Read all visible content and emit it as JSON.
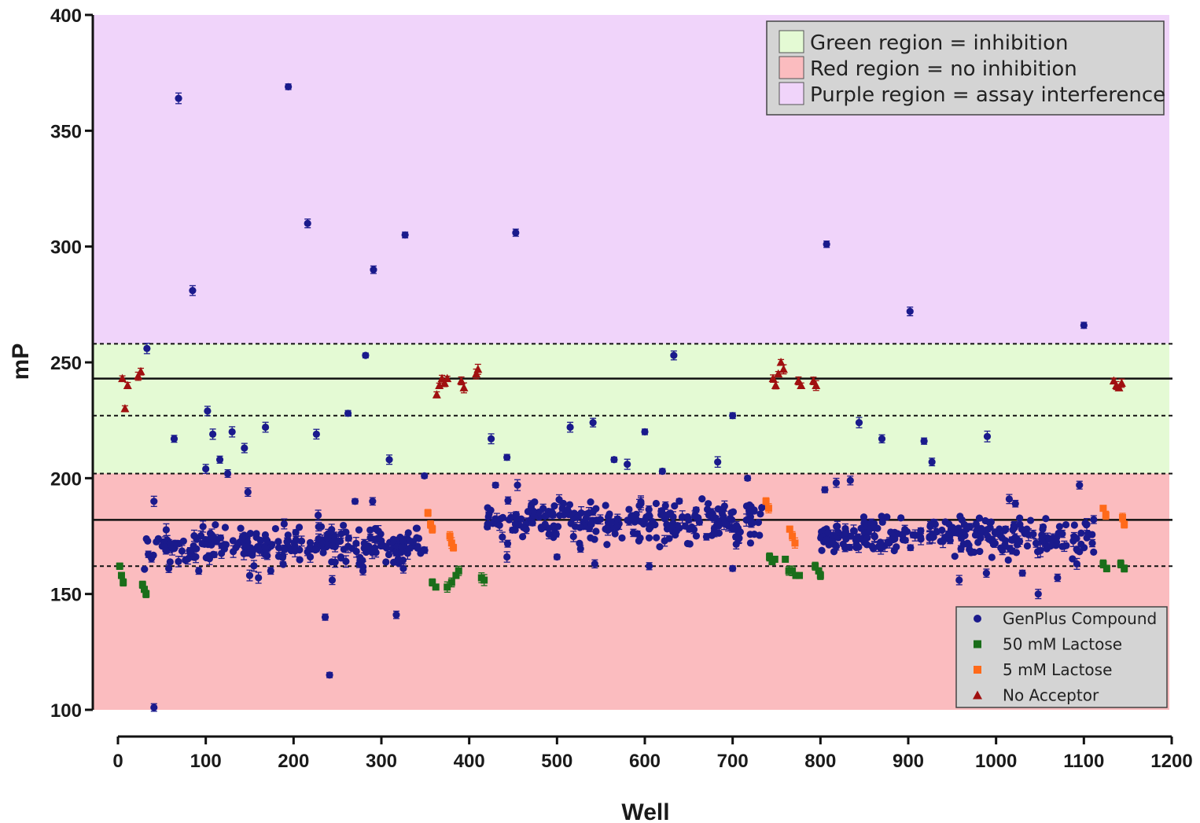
{
  "chart_data": {
    "type": "scatter",
    "title": "",
    "xlabel": "Well",
    "ylabel": "mP",
    "xlim": [
      0,
      1200
    ],
    "ylim": [
      100,
      400
    ],
    "x_ticks": [
      "0",
      "100",
      "200",
      "300",
      "400",
      "500",
      "600",
      "700",
      "800",
      "900",
      "1000",
      "1100",
      "1200"
    ],
    "y_ticks": [
      "100",
      "150",
      "200",
      "250",
      "300",
      "350",
      "400"
    ],
    "regions": [
      {
        "name": "purple",
        "from": 258,
        "to": 400,
        "color": "#f0d4fa"
      },
      {
        "name": "green",
        "from": 202,
        "to": 258,
        "color": "#e4fad4"
      },
      {
        "name": "red",
        "from": 100,
        "to": 202,
        "color": "#fbbcbf"
      }
    ],
    "reference_lines": [
      {
        "y": 243,
        "style": "solid"
      },
      {
        "y": 258,
        "style": "dashed"
      },
      {
        "y": 227,
        "style": "dashed"
      },
      {
        "y": 182,
        "style": "solid"
      },
      {
        "y": 202,
        "style": "dashed"
      },
      {
        "y": 162,
        "style": "dashed"
      }
    ],
    "region_legend": [
      {
        "label": "Green region = inhibition",
        "color": "#e4fad4"
      },
      {
        "label": "Red region = no inhibition",
        "color": "#fbbcbf"
      },
      {
        "label": "Purple region = assay interference",
        "color": "#f0d4fa"
      }
    ],
    "series_legend": [
      {
        "label": "GenPlus Compound",
        "marker": "circle",
        "color": "#1a1a8c"
      },
      {
        "label": "50 mM Lactose",
        "marker": "square",
        "color": "#1a6e1a"
      },
      {
        "label": "5 mM Lactose",
        "marker": "square",
        "color": "#ff6a1a"
      },
      {
        "label": "No Acceptor",
        "marker": "triangle",
        "color": "#a01010"
      }
    ],
    "series": [
      {
        "name": "GenPlus Compound",
        "marker": "circle",
        "color": "#1a1a8c",
        "bands": [
          {
            "x": [
              30,
              350
            ],
            "center": 171,
            "spread": 7,
            "n": 260
          },
          {
            "x": [
              420,
              735
            ],
            "center": 181,
            "spread": 8,
            "n": 260
          },
          {
            "x": [
              800,
              1112
            ],
            "center": 175,
            "spread": 7,
            "n": 260
          }
        ],
        "points": [
          [
            69,
            364
          ],
          [
            85,
            281
          ],
          [
            194,
            369
          ],
          [
            216,
            310
          ],
          [
            291,
            290
          ],
          [
            327,
            305
          ],
          [
            453,
            306
          ],
          [
            807,
            301
          ],
          [
            902,
            272
          ],
          [
            1100,
            266
          ],
          [
            33,
            256
          ],
          [
            282,
            253
          ],
          [
            633,
            253
          ],
          [
            64,
            217
          ],
          [
            102,
            229
          ],
          [
            108,
            219
          ],
          [
            168,
            222
          ],
          [
            130,
            220
          ],
          [
            144,
            213
          ],
          [
            226,
            219
          ],
          [
            262,
            228
          ],
          [
            425,
            217
          ],
          [
            443,
            209
          ],
          [
            515,
            222
          ],
          [
            541,
            224
          ],
          [
            700,
            227
          ],
          [
            600,
            220
          ],
          [
            844,
            224
          ],
          [
            870,
            217
          ],
          [
            918,
            216
          ],
          [
            927,
            207
          ],
          [
            990,
            218
          ],
          [
            565,
            208
          ],
          [
            580,
            206
          ],
          [
            620,
            203
          ],
          [
            683,
            207
          ],
          [
            309,
            208
          ],
          [
            349,
            201
          ],
          [
            100,
            204
          ],
          [
            116,
            208
          ],
          [
            125,
            202
          ],
          [
            717,
            200
          ],
          [
            1095,
            197
          ],
          [
            1015,
            191
          ],
          [
            1022,
            189
          ],
          [
            41,
            190
          ],
          [
            148,
            194
          ],
          [
            228,
            184
          ],
          [
            270,
            190
          ],
          [
            290,
            190
          ],
          [
            430,
            197
          ],
          [
            455,
            197
          ],
          [
            805,
            195
          ],
          [
            818,
            198
          ],
          [
            834,
            199
          ],
          [
            41,
            101
          ],
          [
            241,
            115
          ],
          [
            236,
            140
          ],
          [
            317,
            141
          ],
          [
            244,
            156
          ],
          [
            1048,
            150
          ],
          [
            1070,
            157
          ],
          [
            1092,
            163
          ],
          [
            958,
            156
          ],
          [
            989,
            159
          ],
          [
            1030,
            159
          ],
          [
            700,
            161
          ],
          [
            605,
            162
          ],
          [
            543,
            163
          ],
          [
            500,
            166
          ],
          [
            443,
            166
          ],
          [
            150,
            158
          ],
          [
            160,
            157
          ],
          [
            174,
            160
          ],
          [
            92,
            160
          ],
          [
            219,
            166
          ],
          [
            279,
            160
          ],
          [
            325,
            161
          ]
        ]
      },
      {
        "name": "50 mM Lactose",
        "marker": "square",
        "color": "#1a6e1a",
        "points": [
          [
            2,
            162
          ],
          [
            4,
            158
          ],
          [
            6,
            155
          ],
          [
            28,
            154
          ],
          [
            30,
            152
          ],
          [
            32,
            150
          ],
          [
            358,
            155
          ],
          [
            362,
            153
          ],
          [
            375,
            153
          ],
          [
            380,
            155
          ],
          [
            385,
            158
          ],
          [
            388,
            160
          ],
          [
            414,
            157
          ],
          [
            417,
            156
          ],
          [
            742,
            166
          ],
          [
            745,
            164
          ],
          [
            748,
            165
          ],
          [
            760,
            165
          ],
          [
            764,
            160
          ],
          [
            768,
            160
          ],
          [
            772,
            158
          ],
          [
            776,
            158
          ],
          [
            794,
            162
          ],
          [
            798,
            160
          ],
          [
            800,
            158
          ],
          [
            1122,
            163
          ],
          [
            1126,
            161
          ],
          [
            1142,
            163
          ],
          [
            1146,
            161
          ]
        ]
      },
      {
        "name": "5 mM Lactose",
        "marker": "square",
        "color": "#ff6a1a",
        "points": [
          [
            353,
            185
          ],
          [
            356,
            180
          ],
          [
            358,
            178
          ],
          [
            378,
            175
          ],
          [
            380,
            172
          ],
          [
            382,
            170
          ],
          [
            738,
            190
          ],
          [
            741,
            187
          ],
          [
            765,
            178
          ],
          [
            768,
            175
          ],
          [
            771,
            172
          ],
          [
            1122,
            187
          ],
          [
            1125,
            184
          ],
          [
            1144,
            183
          ],
          [
            1146,
            180
          ]
        ]
      },
      {
        "name": "No Acceptor",
        "marker": "triangle",
        "color": "#a01010",
        "points": [
          [
            5,
            243
          ],
          [
            8,
            230
          ],
          [
            11,
            240
          ],
          [
            23,
            244
          ],
          [
            26,
            246
          ],
          [
            363,
            236
          ],
          [
            366,
            240
          ],
          [
            369,
            243
          ],
          [
            372,
            241
          ],
          [
            375,
            243
          ],
          [
            391,
            242
          ],
          [
            394,
            239
          ],
          [
            408,
            245
          ],
          [
            410,
            247
          ],
          [
            746,
            243
          ],
          [
            749,
            240
          ],
          [
            752,
            245
          ],
          [
            755,
            250
          ],
          [
            758,
            247
          ],
          [
            775,
            242
          ],
          [
            778,
            240
          ],
          [
            792,
            242
          ],
          [
            795,
            240
          ],
          [
            1134,
            242
          ],
          [
            1137,
            240
          ],
          [
            1140,
            239
          ],
          [
            1143,
            241
          ]
        ]
      }
    ]
  }
}
